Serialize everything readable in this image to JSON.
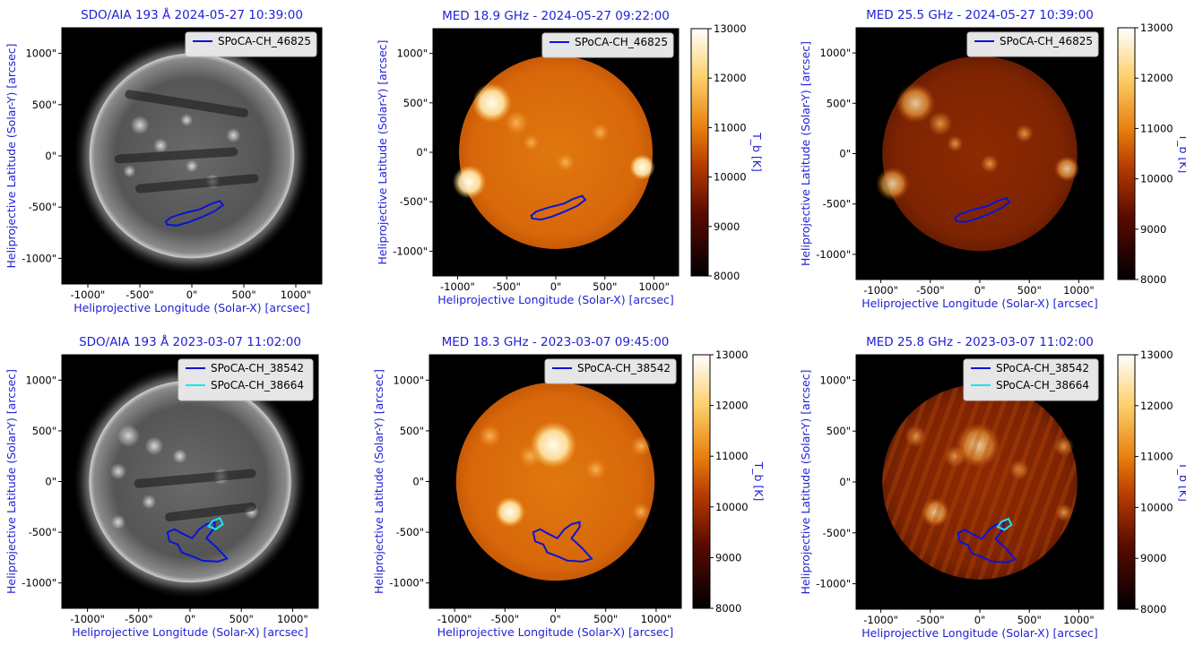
{
  "x_axis_label": "Heliprojective Longitude (Solar-X) [arcsec]",
  "y_axis_label": "Heliprojective Latitude (Solar-Y) [arcsec]",
  "x_ticks": [
    "-1000\"",
    "-500\"",
    "0\"",
    "500\"",
    "1000\""
  ],
  "y_ticks": [
    "1000\"",
    "500\"",
    "0\"",
    "-500\"",
    "-1000\""
  ],
  "colorbar": {
    "label": "T_b [K]",
    "ticks": [
      "13000",
      "12000",
      "11000",
      "10000",
      "9000",
      "8000"
    ],
    "min": 8000,
    "max": 13000
  },
  "colors": {
    "contour_primary": "#0a14d6",
    "contour_secondary": "#18e6f0",
    "label_text": "#1f1fd6"
  },
  "panels": [
    {
      "id": "aia-2024",
      "title": "SDO/AIA 193 Å 2024-05-27 10:39:00",
      "image": "euv",
      "legend": [
        "SPoCA-CH_46825"
      ],
      "colorbar": false
    },
    {
      "id": "med-189",
      "title": "MED 18.9 GHz - 2024-05-27 09:22:00",
      "image": "radio",
      "legend": [
        "SPoCA-CH_46825"
      ],
      "colorbar": true
    },
    {
      "id": "med-255",
      "title": "MED 25.5 GHz - 2024-05-27 10:39:00",
      "image": "radio-dark",
      "legend": [
        "SPoCA-CH_46825"
      ],
      "colorbar": true
    },
    {
      "id": "aia-2023",
      "title": "SDO/AIA 193 Å 2023-03-07 11:02:00",
      "image": "euv",
      "legend": [
        "SPoCA-CH_38542",
        "SPoCA-CH_38664"
      ],
      "colorbar": false
    },
    {
      "id": "med-183",
      "title": "MED 18.3 GHz - 2023-03-07 09:45:00",
      "image": "radio",
      "legend": [
        "SPoCA-CH_38542"
      ],
      "colorbar": true
    },
    {
      "id": "med-258",
      "title": "MED 25.8 GHz - 2023-03-07 11:02:00",
      "image": "radio-dark",
      "legend": [
        "SPoCA-CH_38542",
        "SPoCA-CH_38664"
      ],
      "colorbar": true
    }
  ]
}
